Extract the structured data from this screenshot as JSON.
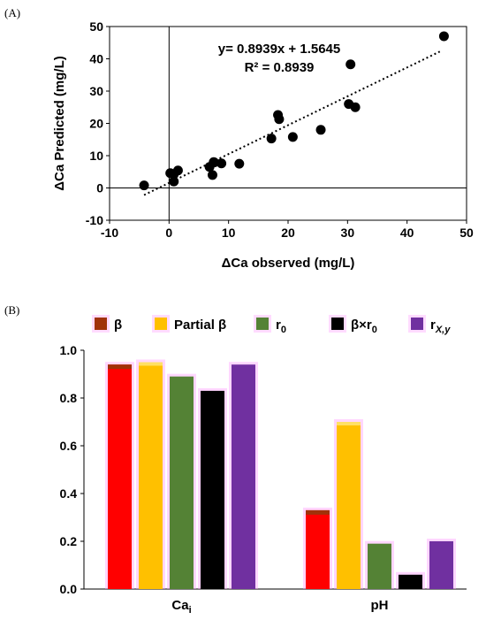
{
  "panels": {
    "a_label": "(A)",
    "b_label": "(B)"
  },
  "colors": {
    "points": "#000000",
    "trendline": "#000000",
    "beta": "#a0320a",
    "partial_beta": "#ffc000",
    "r0": "#548235",
    "beta_r0": "#000000",
    "rxy": "#7030a0",
    "beta_bar": "#ff0000",
    "glow": "#ff99ff"
  },
  "chart_data": [
    {
      "type": "scatter",
      "xlabel": "ΔCa observed (mg/L)",
      "ylabel": "ΔCa Predicted (mg/L)",
      "xlim": [
        -10,
        50
      ],
      "ylim": [
        -10,
        50
      ],
      "xticks": [
        -10,
        0,
        10,
        20,
        30,
        40,
        50
      ],
      "yticks": [
        -10,
        0,
        10,
        20,
        30,
        40,
        50
      ],
      "grid": false,
      "annotations": [
        "y= 0.8939x + 1.5645",
        "R² = 0.8939"
      ],
      "trendline": {
        "slope": 0.8939,
        "intercept": 1.5645,
        "x_range": [
          -4.2,
          45.5
        ],
        "style": "dotted"
      },
      "series": [
        {
          "x": [
            -4.2,
            0.2,
            0.8,
            0.8,
            1.5,
            6.8,
            7.3,
            7.5,
            7.6,
            8.8,
            11.8,
            17.2,
            18.3,
            18.5,
            20.8,
            25.5,
            30.2,
            30.5,
            31.3,
            46.2
          ],
          "y": [
            0.8,
            4.6,
            4.2,
            2.0,
            5.4,
            6.5,
            4.0,
            8.0,
            7.9,
            7.6,
            7.5,
            15.3,
            22.6,
            21.3,
            15.8,
            18.0,
            26.0,
            38.3,
            25.0,
            47.0
          ]
        }
      ]
    },
    {
      "type": "bar",
      "categories": [
        "Ca",
        "pH"
      ],
      "category_subscripts": [
        "i",
        ""
      ],
      "ylim": [
        0.0,
        1.0
      ],
      "yticks": [
        "0.0",
        "0.2",
        "0.4",
        "0.6",
        "0.8",
        "1.0"
      ],
      "legend": [
        "β",
        "Partial β",
        "r",
        "β×r",
        "r"
      ],
      "legend_subscripts": [
        "",
        "",
        "0",
        "0",
        "X,y"
      ],
      "legend_position": "top",
      "grid": false,
      "series": [
        {
          "name": "β",
          "values": [
            0.94,
            0.33
          ]
        },
        {
          "name": "Partial β",
          "values": [
            0.95,
            0.7
          ]
        },
        {
          "name": "r0",
          "values": [
            0.89,
            0.19
          ]
        },
        {
          "name": "β×r0",
          "values": [
            0.83,
            0.06
          ]
        },
        {
          "name": "rX,y",
          "values": [
            0.94,
            0.2
          ]
        }
      ]
    }
  ]
}
